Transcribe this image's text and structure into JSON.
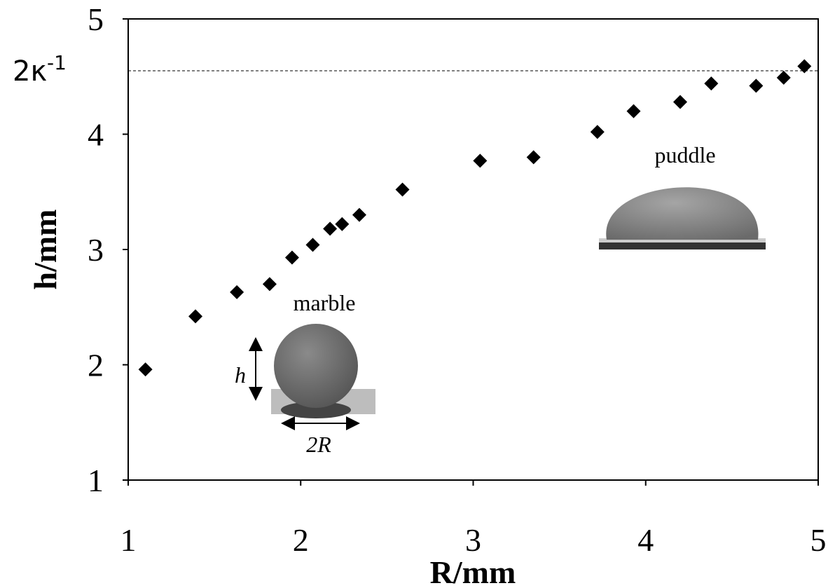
{
  "chart_data": {
    "type": "scatter",
    "x_label": "R/mm",
    "y_label": "h/mm",
    "series": [
      {
        "color": "#000000",
        "x": [
          1.1,
          1.39,
          1.63,
          1.82,
          1.95,
          2.07,
          2.17,
          2.24,
          2.34,
          2.59,
          3.04,
          3.35,
          3.72,
          3.93,
          4.2,
          4.38,
          4.64,
          4.8,
          4.92
        ],
        "values": [
          1.96,
          2.42,
          2.63,
          2.7,
          2.93,
          3.04,
          3.18,
          3.22,
          3.3,
          3.52,
          3.77,
          3.8,
          4.02,
          4.2,
          4.28,
          4.44,
          4.42,
          4.49,
          4.59
        ]
      }
    ],
    "xlim": [
      1,
      5
    ],
    "xticks": [
      1,
      2,
      3,
      4,
      5
    ],
    "ylim": [
      1,
      5
    ],
    "yticks": [
      1,
      2,
      3,
      4,
      5
    ],
    "reference_line": {
      "value": 4.55,
      "label": "2κ",
      "label_sup": "-1"
    },
    "annotations": [
      "marble",
      "puddle",
      "h",
      "2R"
    ]
  }
}
